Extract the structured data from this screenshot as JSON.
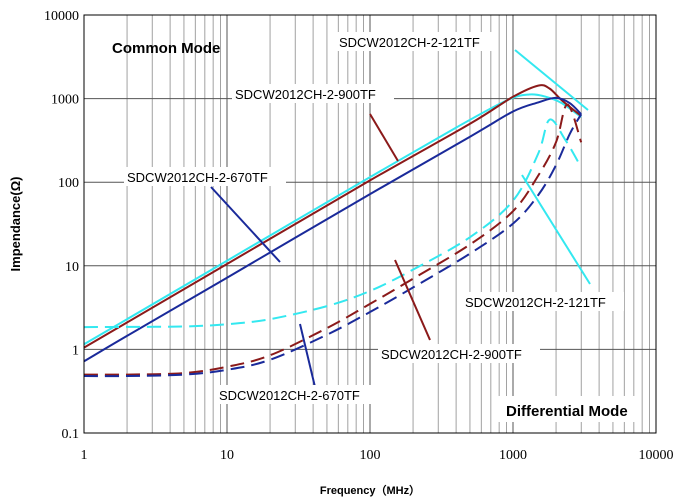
{
  "chart_data": {
    "type": "line",
    "title": "",
    "xlabel": "Frequency（MHz）",
    "ylabel": "Impendance(Ω)",
    "xscale": "log",
    "yscale": "log",
    "xlim": [
      1,
      10000
    ],
    "ylim": [
      0.1,
      10000
    ],
    "x_ticks": [
      "1",
      "10",
      "100",
      "1000",
      "10000"
    ],
    "y_ticks": [
      "0.1",
      "1",
      "10",
      "100",
      "1000",
      "10000"
    ],
    "grid": true,
    "annotations": [
      {
        "id": "common",
        "text": "Common Mode"
      },
      {
        "id": "diff",
        "text": "Differential Mode"
      }
    ],
    "colors": {
      "cyan": "#33e8f0",
      "maroon": "#8b1a1a",
      "navy": "#1a2a9a"
    },
    "series": [
      {
        "name": "SDCW2012CH-2-121TF",
        "mode": "common",
        "dash": false,
        "color": "#33e8f0",
        "x": [
          1,
          2,
          10,
          100,
          400,
          900,
          1300,
          1700,
          2200,
          3000
        ],
        "y": [
          1.15,
          2.3,
          11.5,
          115,
          450,
          950,
          1120,
          1050,
          880,
          600
        ]
      },
      {
        "name": "SDCW2012CH-2-900TF",
        "mode": "common",
        "dash": false,
        "color": "#8b1a1a",
        "x": [
          1,
          2,
          10,
          100,
          500,
          1000,
          1500,
          1800,
          2200,
          3000
        ],
        "y": [
          1.05,
          2.1,
          10.5,
          105,
          500,
          1050,
          1430,
          1320,
          950,
          620
        ]
      },
      {
        "name": "SDCW2012CH-2-670TF",
        "mode": "common",
        "dash": false,
        "color": "#1a2a9a",
        "x": [
          1,
          2,
          10,
          100,
          500,
          1000,
          1500,
          2000,
          2500,
          3000
        ],
        "y": [
          0.72,
          1.45,
          7.2,
          72,
          350,
          700,
          900,
          1020,
          880,
          650
        ]
      },
      {
        "name": "SDCW2012CH-2-121TF",
        "mode": "differential",
        "dash": true,
        "color": "#33e8f0",
        "x": [
          1,
          2,
          5,
          10,
          20,
          50,
          100,
          200,
          500,
          1000,
          1500,
          1800,
          2300,
          3000
        ],
        "y": [
          1.85,
          1.86,
          1.88,
          2.0,
          2.3,
          3.3,
          5.0,
          9.0,
          22,
          60,
          220,
          560,
          330,
          150
        ]
      },
      {
        "name": "SDCW2012CH-2-900TF",
        "mode": "differential",
        "dash": true,
        "color": "#8b1a1a",
        "x": [
          1,
          2,
          5,
          10,
          20,
          50,
          100,
          200,
          500,
          1000,
          1500,
          2000,
          2400,
          3000
        ],
        "y": [
          0.5,
          0.5,
          0.52,
          0.62,
          0.85,
          1.8,
          3.5,
          7.0,
          18,
          45,
          120,
          300,
          850,
          300
        ]
      },
      {
        "name": "SDCW2012CH-2-670TF",
        "mode": "differential",
        "dash": true,
        "color": "#1a2a9a",
        "x": [
          1,
          2,
          5,
          10,
          20,
          50,
          100,
          200,
          500,
          1000,
          1500,
          2000,
          2500,
          3000
        ],
        "y": [
          0.48,
          0.48,
          0.5,
          0.57,
          0.75,
          1.5,
          2.8,
          5.5,
          14,
          32,
          70,
          160,
          380,
          650
        ]
      }
    ],
    "curve_labels": [
      {
        "text": "SDCW2012CH-2-121TF",
        "series_index": 0
      },
      {
        "text": "SDCW2012CH-2-900TF",
        "series_index": 1
      },
      {
        "text": "SDCW2012CH-2-670TF",
        "series_index": 2
      },
      {
        "text": "SDCW2012CH-2-121TF",
        "series_index": 3
      },
      {
        "text": "SDCW2012CH-2-900TF",
        "series_index": 4
      },
      {
        "text": "SDCW2012CH-2-670TF",
        "series_index": 5
      }
    ]
  }
}
